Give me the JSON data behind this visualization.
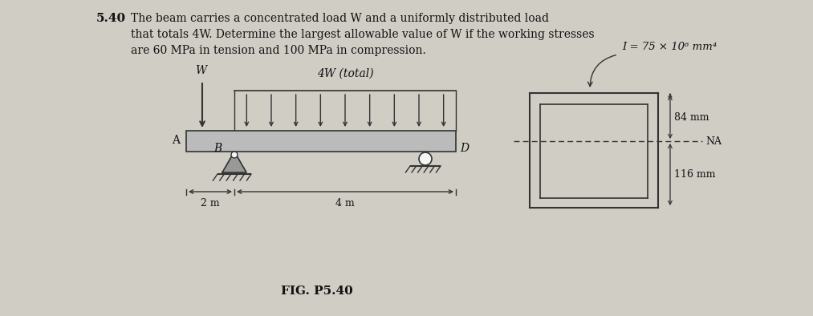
{
  "bg_color": "#d0cdc5",
  "title_number": "5.40",
  "fig_label": "FIG. P5.40",
  "beam_label_left": "A",
  "beam_label_B": "B",
  "beam_label_D": "D",
  "load_label_W": "W",
  "load_label_4W": "4W (total)",
  "moment_label": "I = 75 × 10⁶ mm⁴",
  "dim_84": "84 mm",
  "dim_116": "116 mm",
  "na_label": "NA",
  "dim_2m": "2 m",
  "dim_4m": "4 m",
  "text_color": "#111111",
  "line_color": "#333333",
  "beam_fill": "#bbbbbb",
  "support_fill": "#999999",
  "white": "#f5f5f5"
}
